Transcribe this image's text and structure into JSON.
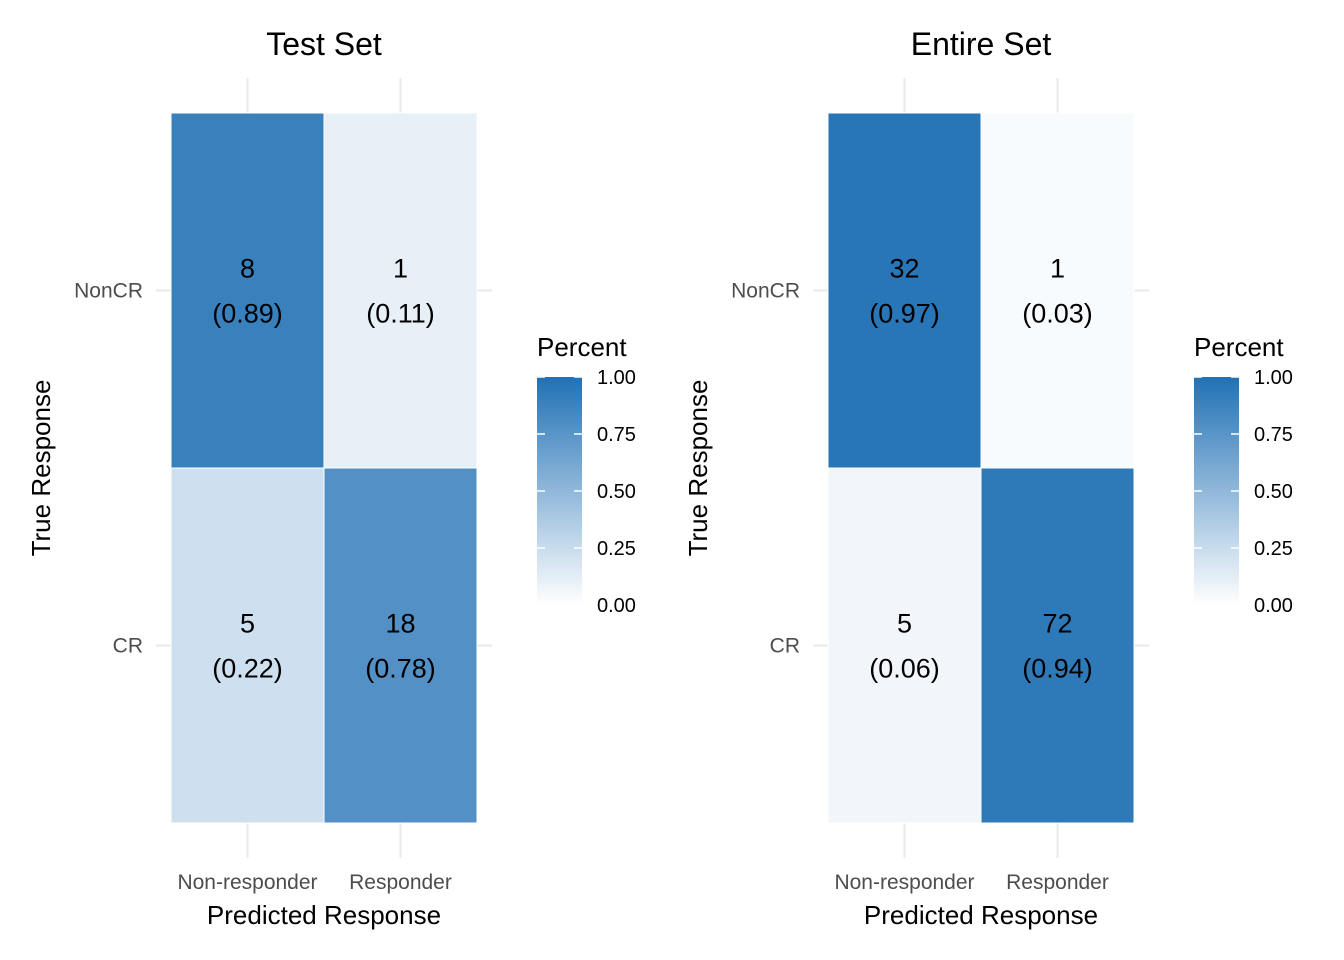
{
  "chart_data": [
    {
      "type": "heatmap",
      "title": "Test Set",
      "xlabel": "Predicted Response",
      "ylabel": "True Response",
      "x_categories": [
        "Non-responder",
        "Responder"
      ],
      "y_categories": [
        "NonCR",
        "CR"
      ],
      "cells": [
        {
          "row": "NonCR",
          "col": "Non-responder",
          "count": "8",
          "percent": 0.89,
          "percent_label": "(0.89)"
        },
        {
          "row": "NonCR",
          "col": "Responder",
          "count": "1",
          "percent": 0.11,
          "percent_label": "(0.11)"
        },
        {
          "row": "CR",
          "col": "Non-responder",
          "count": "5",
          "percent": 0.22,
          "percent_label": "(0.22)"
        },
        {
          "row": "CR",
          "col": "Responder",
          "count": "18",
          "percent": 0.78,
          "percent_label": "(0.78)"
        }
      ],
      "legend": {
        "title": "Percent",
        "ticks": [
          "0.00",
          "0.25",
          "0.50",
          "0.75",
          "1.00"
        ],
        "range": [
          0,
          1
        ],
        "low_color": "#ffffff",
        "high_color": "#2171b5"
      },
      "grid": true
    },
    {
      "type": "heatmap",
      "title": "Entire Set",
      "xlabel": "Predicted Response",
      "ylabel": "True Response",
      "x_categories": [
        "Non-responder",
        "Responder"
      ],
      "y_categories": [
        "NonCR",
        "CR"
      ],
      "cells": [
        {
          "row": "NonCR",
          "col": "Non-responder",
          "count": "32",
          "percent": 0.97,
          "percent_label": "(0.97)"
        },
        {
          "row": "NonCR",
          "col": "Responder",
          "count": "1",
          "percent": 0.03,
          "percent_label": "(0.03)"
        },
        {
          "row": "CR",
          "col": "Non-responder",
          "count": "5",
          "percent": 0.06,
          "percent_label": "(0.06)"
        },
        {
          "row": "CR",
          "col": "Responder",
          "count": "72",
          "percent": 0.94,
          "percent_label": "(0.94)"
        }
      ],
      "legend": {
        "title": "Percent",
        "ticks": [
          "0.00",
          "0.25",
          "0.50",
          "0.75",
          "1.00"
        ],
        "range": [
          0,
          1
        ],
        "low_color": "#ffffff",
        "high_color": "#2171b5"
      },
      "grid": true
    }
  ]
}
